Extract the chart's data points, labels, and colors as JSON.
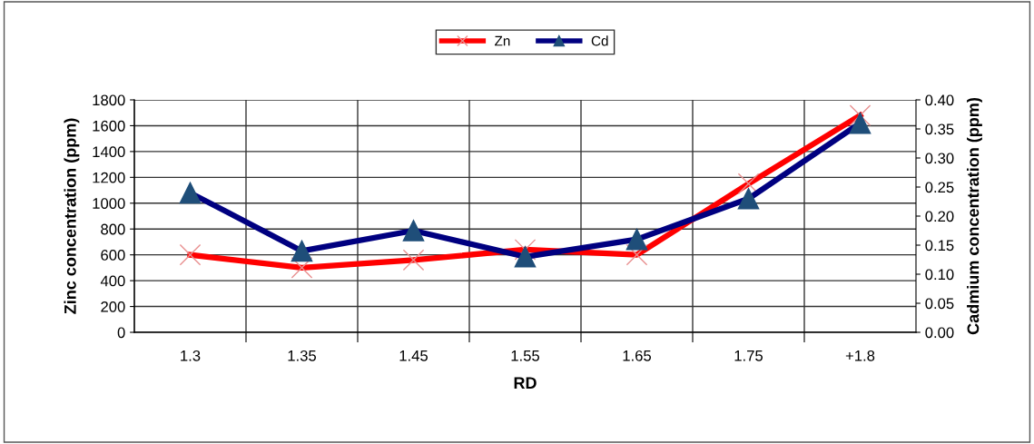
{
  "chart_data": {
    "type": "line",
    "xlabel": "RD",
    "ylabel": "Zinc concentration (ppm)",
    "y2label": "Cadmium concentration (ppm)",
    "categories": [
      "1.3",
      "1.35",
      "1.45",
      "1.55",
      "1.65",
      "1.75",
      "+1.8"
    ],
    "series": [
      {
        "name": "Zn",
        "color": "#ff0000",
        "marker": "cross",
        "values": [
          600,
          500,
          560,
          640,
          600,
          1150,
          1680
        ]
      },
      {
        "name": "Cd",
        "color": "#000080",
        "marker": "triangle",
        "axis": "y2",
        "values": [
          0.24,
          0.14,
          0.175,
          0.13,
          0.16,
          0.23,
          0.36
        ]
      }
    ],
    "ylim": [
      0,
      1800
    ],
    "yticks": [
      0,
      200,
      400,
      600,
      800,
      1000,
      1200,
      1400,
      1600,
      1800
    ],
    "y2lim": [
      0,
      0.4
    ],
    "y2ticks": [
      {
        "value": 0,
        "label": "0.00"
      },
      {
        "value": 0.05,
        "label": "0.05"
      },
      {
        "value": 0.1,
        "label": "0.10"
      },
      {
        "value": 0.15,
        "label": "0.15"
      },
      {
        "value": 0.2,
        "label": "0.20"
      },
      {
        "value": 0.25,
        "label": "0.25"
      },
      {
        "value": 0.3,
        "label": "0.30"
      },
      {
        "value": 0.35,
        "label": "0.35"
      },
      {
        "value": 0.4,
        "label": "0.40"
      }
    ],
    "grid": true,
    "legend": "top",
    "line_style": "solid"
  }
}
